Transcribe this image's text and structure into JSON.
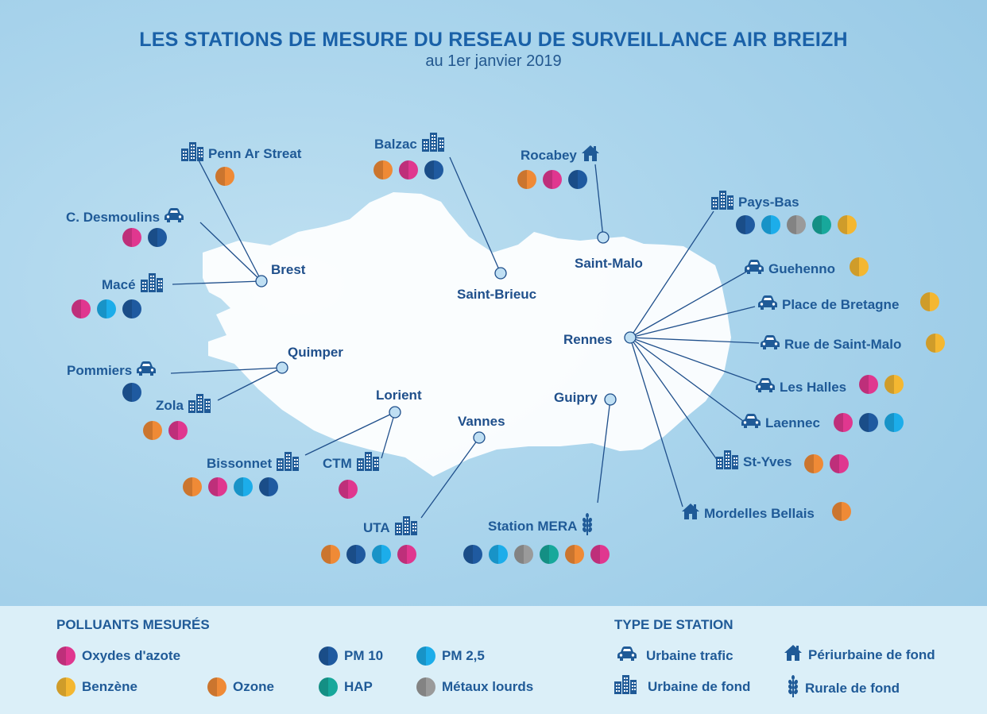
{
  "title": "LES STATIONS DE MESURE DU RESEAU DE SURVEILLANCE AIR BREIZH",
  "subtitle": "au 1er janvier 2019",
  "colors": {
    "nox": "#e0378f",
    "benzene": "#f4b731",
    "ozone": "#ef8a36",
    "pm10": "#1f5aa0",
    "pm25": "#1cadea",
    "hap": "#17a89b",
    "metaux": "#9a9a9a",
    "text": "#1f5a97"
  },
  "cities": {
    "brest": "Brest",
    "saint_brieuc": "Saint-Brieuc",
    "saint_malo": "Saint-Malo",
    "rennes": "Rennes",
    "quimper": "Quimper",
    "lorient": "Lorient",
    "vannes": "Vannes",
    "guipry": "Guipry"
  },
  "stations": {
    "penn_ar_streat": {
      "name": "Penn Ar Streat",
      "type": "urbaine-fond",
      "pollutants": [
        "ozone"
      ]
    },
    "c_desmoulins": {
      "name": "C. Desmoulins",
      "type": "urbaine-trafic",
      "pollutants": [
        "nox",
        "pm10"
      ]
    },
    "mace": {
      "name": "Macé",
      "type": "urbaine-fond",
      "pollutants": [
        "nox",
        "pm25",
        "pm10"
      ]
    },
    "balzac": {
      "name": "Balzac",
      "type": "urbaine-fond",
      "pollutants": [
        "ozone",
        "nox",
        "pm10"
      ]
    },
    "rocabey": {
      "name": "Rocabey",
      "type": "periurbaine-fond",
      "pollutants": [
        "ozone",
        "nox",
        "pm10"
      ]
    },
    "pays_bas": {
      "name": "Pays-Bas",
      "type": "urbaine-fond",
      "pollutants": [
        "pm10",
        "pm25",
        "metaux",
        "hap",
        "benzene"
      ]
    },
    "guehenno": {
      "name": "Guehenno",
      "type": "urbaine-trafic",
      "pollutants": [
        "benzene"
      ]
    },
    "place_bretagne": {
      "name": "Place de Bretagne",
      "type": "urbaine-trafic",
      "pollutants": [
        "benzene"
      ]
    },
    "rue_saint_malo": {
      "name": "Rue de Saint-Malo",
      "type": "urbaine-trafic",
      "pollutants": [
        "benzene"
      ]
    },
    "les_halles": {
      "name": "Les Halles",
      "type": "urbaine-trafic",
      "pollutants": [
        "nox",
        "benzene"
      ]
    },
    "laennec": {
      "name": "Laennec",
      "type": "urbaine-trafic",
      "pollutants": [
        "nox",
        "pm10",
        "pm25"
      ]
    },
    "st_yves": {
      "name": "St-Yves",
      "type": "urbaine-fond",
      "pollutants": [
        "ozone",
        "nox"
      ]
    },
    "mordelles": {
      "name": "Mordelles Bellais",
      "type": "periurbaine-fond",
      "pollutants": [
        "ozone"
      ]
    },
    "pommiers": {
      "name": "Pommiers",
      "type": "urbaine-trafic",
      "pollutants": [
        "pm10"
      ]
    },
    "zola": {
      "name": "Zola",
      "type": "urbaine-fond",
      "pollutants": [
        "ozone",
        "nox"
      ]
    },
    "bissonnet": {
      "name": "Bissonnet",
      "type": "urbaine-fond",
      "pollutants": [
        "ozone",
        "nox",
        "pm25",
        "pm10"
      ]
    },
    "ctm": {
      "name": "CTM",
      "type": "urbaine-fond",
      "pollutants": [
        "nox"
      ]
    },
    "uta": {
      "name": "UTA",
      "type": "urbaine-fond",
      "pollutants": [
        "ozone",
        "pm10",
        "pm25",
        "nox"
      ]
    },
    "mera": {
      "name": "Station MERA",
      "type": "rurale-fond",
      "pollutants": [
        "pm10",
        "pm25",
        "metaux",
        "hap",
        "ozone",
        "nox"
      ]
    }
  },
  "legend": {
    "pollutants_title": "POLLUANTS MESURÉS",
    "types_title": "TYPE DE STATION",
    "nox": "Oxydes d'azote",
    "benzene": "Benzène",
    "ozone": "Ozone",
    "pm10": "PM 10",
    "hap": "HAP",
    "pm25": "PM 2,5",
    "metaux": "Métaux lourds",
    "urbaine_trafic": "Urbaine trafic",
    "urbaine_fond": "Urbaine de fond",
    "periurbaine_fond": "Périurbaine de fond",
    "rurale_fond": "Rurale de fond"
  }
}
